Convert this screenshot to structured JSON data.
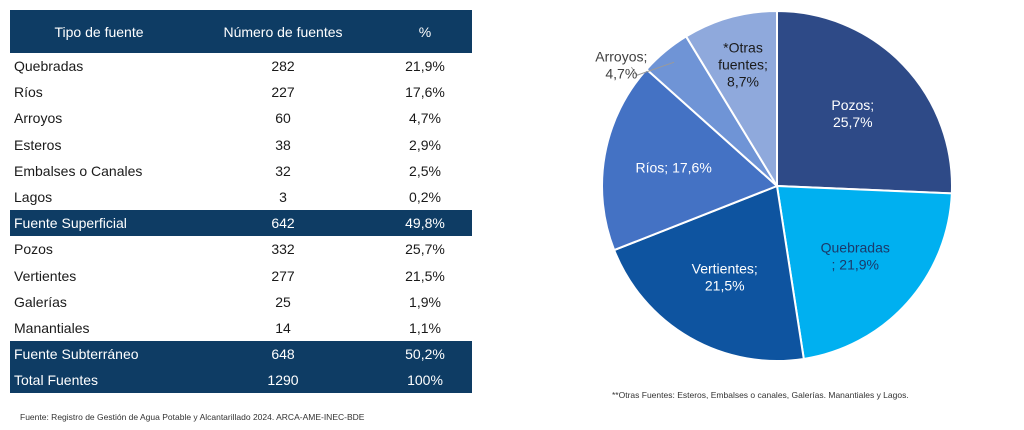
{
  "table": {
    "headers": [
      "Tipo de fuente",
      "Número de fuentes",
      "%"
    ],
    "rows": [
      {
        "label": "Quebradas",
        "count": "282",
        "pct": "21,9%",
        "highlight": false
      },
      {
        "label": "Ríos",
        "count": "227",
        "pct": "17,6%",
        "highlight": false
      },
      {
        "label": "Arroyos",
        "count": "60",
        "pct": "4,7%",
        "highlight": false
      },
      {
        "label": "Esteros",
        "count": "38",
        "pct": "2,9%",
        "highlight": false
      },
      {
        "label": "Embalses o Canales",
        "count": "32",
        "pct": "2,5%",
        "highlight": false
      },
      {
        "label": "Lagos",
        "count": "3",
        "pct": "0,2%",
        "highlight": false
      },
      {
        "label": "Fuente Superficial",
        "count": "642",
        "pct": "49,8%",
        "highlight": true
      },
      {
        "label": "Pozos",
        "count": "332",
        "pct": "25,7%",
        "highlight": false
      },
      {
        "label": "Vertientes",
        "count": "277",
        "pct": "21,5%",
        "highlight": false
      },
      {
        "label": "Galerías",
        "count": "25",
        "pct": "1,9%",
        "highlight": false
      },
      {
        "label": "Manantiales",
        "count": "14",
        "pct": "1,1%",
        "highlight": false
      },
      {
        "label": "Fuente Subterráneo",
        "count": "648",
        "pct": "50,2%",
        "highlight": true
      },
      {
        "label": "Total Fuentes",
        "count": "1290",
        "pct": "100%",
        "highlight": true
      }
    ]
  },
  "source_note": "Fuente: Registro de Gestión de Agua Potable y Alcantarillado 2024. ARCA-AME-INEC-BDE",
  "chart_footnote": "**Otras Fuentes: Esteros, Embalses o canales, Galerías. Manantiales y Lagos.",
  "chart_data": {
    "type": "pie",
    "start_angle_deg": 0,
    "direction": "clockwise",
    "slices": [
      {
        "label": [
          "Pozos;",
          "25,7%"
        ],
        "value": 25.7,
        "color": "#2e4a87",
        "text_color": "#ffffff"
      },
      {
        "label": [
          "Quebradas",
          "; 21,9%"
        ],
        "value": 21.9,
        "color": "#00b0f0",
        "text_color": "#1a3a6b"
      },
      {
        "label": [
          "Vertientes;",
          "21,5%"
        ],
        "value": 21.5,
        "color": "#0e54a0",
        "text_color": "#ffffff"
      },
      {
        "label": [
          "Ríos; 17,6%"
        ],
        "value": 17.6,
        "color": "#4472c4",
        "text_color": "#ffffff"
      },
      {
        "label": [
          "Arroyos;",
          "4,7%"
        ],
        "value": 4.7,
        "color": "#6f94d6",
        "text_color": "#404040",
        "outside": true
      },
      {
        "label": [
          "*Otras",
          "fuentes;",
          "8,7%"
        ],
        "value": 8.7,
        "color": "#8fa9dc",
        "text_color": "#1a1a1a"
      }
    ]
  }
}
